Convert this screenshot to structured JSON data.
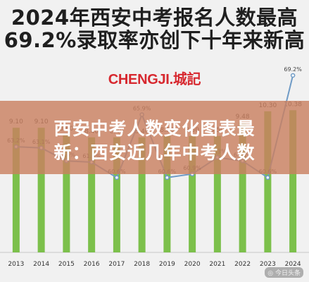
{
  "headline": {
    "line1": "2024年西安中考报名人数最高",
    "line2": "69.2%录取率亦创下十年来新高"
  },
  "logo": {
    "brand": "CHENGJI",
    "suffix": ".城記"
  },
  "banner": {
    "line1": "西安中考人数变化图表最",
    "line2": "新：西安近几年中考人数"
  },
  "watermark": "◎ 今日头条",
  "colors": {
    "bar": "#7cc04b",
    "line": "#6f9bc6",
    "banner": "#c98060",
    "logo": "#d7282f"
  },
  "chart_data": {
    "type": "bar+line",
    "categories": [
      "2013",
      "2014",
      "2015",
      "2016",
      "2017",
      "2018",
      "2019",
      "2020",
      "2021",
      "2022",
      "2023",
      "2024"
    ],
    "series": [
      {
        "kind": "bar",
        "values": [
          9.1,
          9.1,
          8.6,
          8.4,
          8.4,
          8.4,
          8.5,
          8.5,
          8.5,
          9.48,
          10.3,
          10.38
        ],
        "labels": [
          "9.10",
          "9.10",
          "8.60",
          "8.40",
          "8.40",
          "8.40",
          "8.50",
          "8.50",
          "8.50",
          "9.48",
          "10.30",
          "10.38"
        ]
      },
      {
        "kind": "line",
        "values": [
          63.2,
          63.1,
          62.0,
          61.9,
          60.6,
          65.9,
          60.6,
          60.9,
          62.3,
          62.0,
          60.6,
          69.2
        ],
        "labels": [
          "63.2%",
          "63.1%",
          "62.0%",
          "61.9%",
          "60.6%",
          "65.9%",
          "60.6%",
          "60.9%",
          "62.3%",
          "62.0%",
          "60.6%",
          "69.2%"
        ]
      }
    ],
    "bar_ylim": [
      0,
      10.5
    ],
    "line_ylim": [
      60.0,
      69.2
    ]
  }
}
